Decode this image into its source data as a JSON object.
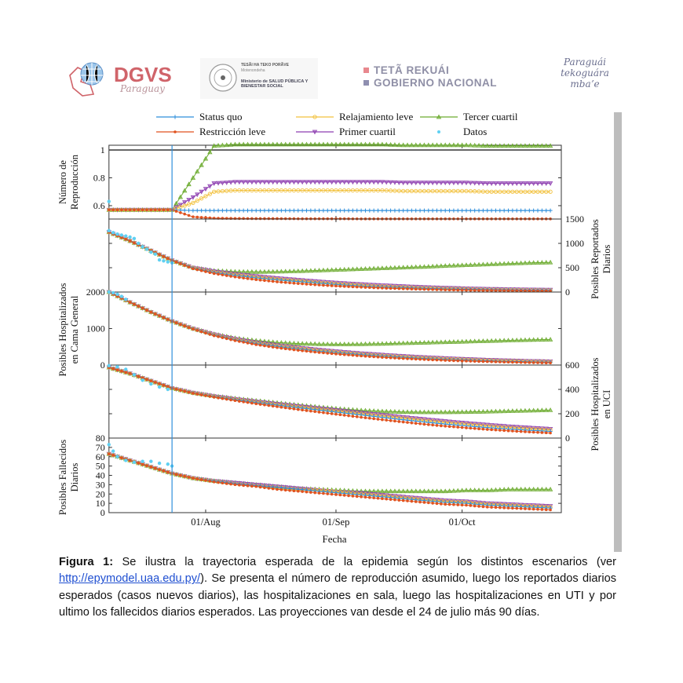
{
  "header": {
    "logos": {
      "dgvs": {
        "title": "DGVS",
        "subtitle": "Paraguay"
      },
      "ministry": {
        "line1": "TESÃI HA TEKO PORÃVE",
        "line2": "Motenondeha",
        "line3": "Ministerio de SALUD PÚBLICA Y BIENESTAR SOCIAL"
      },
      "government": {
        "line1": "TETÃ REKUÁI",
        "line2": "GOBIERNO NACIONAL"
      },
      "slogan": "Paraguái tekoguára mbaʼe"
    }
  },
  "caption": {
    "label": "Figura 1:",
    "text_before_link": " Se ilustra la trayectoria esperada de la epidemia según los distintos escenarios (ver ",
    "link": "http://epymodel.uaa.edu.py/",
    "text_after_link": "). Se presenta el número de reproducción asumido, luego los reportados diarios esperados (casos nuevos diarios), las hospitalizaciones en sala, luego las hospitalizaciones en UTI y por ultimo los fallecidos diarios esperados. Las proyecciones van desde el 24 de julio más 90 días."
  },
  "colors": {
    "status_quo": "#2f8fdc",
    "restriccion": "#e0521f",
    "relajamiento": "#f2c13d",
    "primer": "#8e3fb0",
    "tercer": "#6cab2f",
    "datos": "#5fd0f2",
    "threshold": "#444444",
    "marker_line": "#2f8fdc"
  },
  "chart_data": {
    "type": "line",
    "xlabel": "Fecha",
    "x_unit": "days since 09/Jul",
    "xlim": [
      0,
      107.6
    ],
    "x_ticks": [
      {
        "day": 23,
        "label": "01/Aug"
      },
      {
        "day": 54,
        "label": "01/Sep"
      },
      {
        "day": 84,
        "label": "01/Oct"
      }
    ],
    "projection_start_day": 15,
    "legend": {
      "placement": "top",
      "entries": [
        {
          "key": "status_quo",
          "label": "Status quo",
          "marker": "plus"
        },
        {
          "key": "relajamiento",
          "label": "Relajamiento leve",
          "marker": "circle"
        },
        {
          "key": "tercer",
          "label": "Tercer cuartil",
          "marker": "triangle-up"
        },
        {
          "key": "restriccion",
          "label": "Restricción leve",
          "marker": "dot"
        },
        {
          "key": "primer",
          "label": "Primer cuartil",
          "marker": "triangle-down"
        },
        {
          "key": "datos",
          "label": "Datos",
          "marker": "data-dot"
        }
      ]
    },
    "x": [
      0,
      5,
      10,
      15,
      20,
      25,
      30,
      35,
      40,
      45,
      50,
      55,
      60,
      65,
      70,
      75,
      80,
      85,
      90,
      95,
      100,
      105
    ],
    "panels": [
      {
        "id": "reproduccion",
        "ylabel": [
          "Número de",
          "Reproducción"
        ],
        "axis_side": "left",
        "ylim": [
          0.504,
          1.034
        ],
        "yticks": [
          0.6,
          0.8,
          1
        ],
        "ytick_labels": [
          "0.6",
          "0.8",
          "1"
        ],
        "threshold": 1,
        "series": {
          "status_quo": [
            0.57,
            0.57,
            0.57,
            0.57,
            0.565,
            0.565,
            0.565,
            0.565,
            0.565,
            0.565,
            0.565,
            0.565,
            0.565,
            0.565,
            0.565,
            0.565,
            0.565,
            0.565,
            0.565,
            0.565,
            0.565,
            0.565
          ],
          "restriccion": [
            0.57,
            0.57,
            0.57,
            0.57,
            0.52,
            0.51,
            0.508,
            0.507,
            0.507,
            0.506,
            0.506,
            0.506,
            0.505,
            0.505,
            0.505,
            0.505,
            0.505,
            0.505,
            0.505,
            0.505,
            0.505,
            0.505
          ],
          "relajamiento": [
            0.57,
            0.57,
            0.57,
            0.57,
            0.62,
            0.7,
            0.71,
            0.71,
            0.71,
            0.71,
            0.71,
            0.71,
            0.71,
            0.71,
            0.705,
            0.705,
            0.705,
            0.705,
            0.7,
            0.7,
            0.7,
            0.7
          ],
          "primer": [
            0.57,
            0.57,
            0.57,
            0.57,
            0.66,
            0.76,
            0.77,
            0.77,
            0.77,
            0.77,
            0.77,
            0.77,
            0.77,
            0.77,
            0.765,
            0.765,
            0.765,
            0.765,
            0.76,
            0.76,
            0.76,
            0.76
          ],
          "tercer": [
            0.57,
            0.57,
            0.57,
            0.57,
            0.8,
            1.03,
            1.04,
            1.04,
            1.04,
            1.04,
            1.04,
            1.04,
            1.04,
            1.04,
            1.035,
            1.035,
            1.035,
            1.035,
            1.03,
            1.03,
            1.03,
            1.03
          ]
        },
        "datos": {
          "x": [
            0
          ],
          "y": [
            0.63
          ]
        }
      },
      {
        "id": "reportados",
        "ylabel": [
          "Posibles Reportados",
          "Diarios"
        ],
        "axis_side": "right",
        "ylim": [
          0,
          1500
        ],
        "yticks": [
          0,
          500,
          1000,
          1500
        ],
        "ytick_labels": [
          "0",
          "500",
          "1000",
          "1500"
        ],
        "series": {
          "status_quo": [
            1230,
            1050,
            850,
            650,
            490,
            400,
            340,
            290,
            250,
            215,
            180,
            150,
            125,
            105,
            90,
            75,
            65,
            55,
            48,
            42,
            38,
            35
          ],
          "restriccion": [
            1230,
            1050,
            850,
            650,
            480,
            380,
            310,
            255,
            210,
            175,
            145,
            120,
            100,
            82,
            68,
            56,
            46,
            38,
            32,
            27,
            23,
            20
          ],
          "relajamiento": [
            1230,
            1050,
            850,
            650,
            495,
            410,
            355,
            305,
            265,
            230,
            195,
            165,
            140,
            118,
            100,
            85,
            72,
            62,
            53,
            46,
            41,
            37
          ],
          "primer": [
            1230,
            1050,
            850,
            650,
            500,
            425,
            370,
            325,
            285,
            250,
            215,
            185,
            160,
            137,
            118,
            100,
            86,
            74,
            64,
            56,
            50,
            45
          ],
          "tercer": [
            1230,
            1050,
            850,
            650,
            500,
            440,
            420,
            415,
            420,
            430,
            445,
            460,
            475,
            490,
            505,
            520,
            540,
            555,
            570,
            585,
            600,
            610
          ]
        },
        "datos": {
          "x": [
            0,
            1,
            2,
            3,
            4,
            5,
            6,
            7,
            8,
            9,
            10,
            11,
            12,
            13,
            14,
            15
          ],
          "y": [
            1260,
            1220,
            1190,
            1170,
            1150,
            1130,
            1100,
            1000,
            930,
            880,
            820,
            780,
            660,
            640,
            620,
            600
          ]
        }
      },
      {
        "id": "cama_general",
        "ylabel": [
          "Posibles Hospitalizados",
          "en Cama General"
        ],
        "axis_side": "left",
        "ylim": [
          0,
          2000
        ],
        "yticks": [
          0,
          1000,
          2000
        ],
        "ytick_labels": [
          "0",
          "1000",
          "2000"
        ],
        "series": {
          "status_quo": [
            2000,
            1720,
            1450,
            1200,
            990,
            820,
            690,
            590,
            510,
            440,
            380,
            330,
            285,
            245,
            210,
            180,
            155,
            135,
            115,
            100,
            88,
            78
          ],
          "restriccion": [
            2000,
            1720,
            1450,
            1200,
            985,
            805,
            670,
            560,
            475,
            405,
            345,
            295,
            250,
            212,
            180,
            152,
            130,
            110,
            94,
            80,
            68,
            58
          ],
          "relajamiento": [
            2000,
            1720,
            1450,
            1200,
            995,
            830,
            700,
            605,
            525,
            458,
            398,
            346,
            300,
            260,
            225,
            195,
            170,
            148,
            128,
            112,
            99,
            88
          ],
          "primer": [
            2000,
            1720,
            1450,
            1200,
            1000,
            840,
            715,
            620,
            545,
            478,
            418,
            366,
            320,
            280,
            245,
            213,
            186,
            163,
            142,
            125,
            110,
            98
          ],
          "tercer": [
            2000,
            1720,
            1450,
            1200,
            1000,
            850,
            740,
            670,
            620,
            590,
            575,
            570,
            575,
            585,
            600,
            615,
            630,
            645,
            660,
            675,
            690,
            700
          ]
        },
        "datos": {
          "x": [
            0,
            1,
            2,
            3,
            4
          ],
          "y": [
            2000,
            1980,
            1940,
            1880,
            1800
          ]
        }
      },
      {
        "id": "uci",
        "ylabel": [
          "Posibles Hospitalizados",
          "en UCI"
        ],
        "axis_side": "right",
        "ylim": [
          0,
          600
        ],
        "yticks": [
          0,
          200,
          400,
          600
        ],
        "ytick_labels": [
          "0",
          "200",
          "400",
          "600"
        ],
        "series": {
          "status_quo": [
            580,
            530,
            470,
            410,
            370,
            340,
            315,
            292,
            270,
            250,
            230,
            210,
            190,
            170,
            150,
            132,
            115,
            100,
            86,
            74,
            64,
            55
          ],
          "restriccion": [
            580,
            530,
            470,
            410,
            368,
            336,
            308,
            282,
            258,
            235,
            213,
            192,
            171,
            151,
            132,
            114,
            98,
            84,
            71,
            60,
            50,
            42
          ],
          "relajamiento": [
            580,
            530,
            470,
            410,
            371,
            342,
            318,
            296,
            275,
            256,
            237,
            218,
            199,
            180,
            162,
            144,
            127,
            112,
            98,
            86,
            75,
            66
          ],
          "primer": [
            580,
            530,
            470,
            410,
            372,
            344,
            321,
            300,
            280,
            262,
            244,
            226,
            208,
            190,
            172,
            155,
            138,
            123,
            109,
            96,
            85,
            75
          ],
          "tercer": [
            580,
            530,
            470,
            410,
            372,
            346,
            326,
            308,
            290,
            272,
            255,
            240,
            228,
            220,
            215,
            213,
            213,
            215,
            218,
            222,
            226,
            230
          ]
        },
        "datos": {
          "x": [
            0,
            2,
            4,
            6,
            8,
            10,
            12,
            14
          ],
          "y": [
            595,
            585,
            565,
            520,
            475,
            445,
            420,
            400
          ]
        }
      },
      {
        "id": "fallecidos",
        "ylabel": [
          "Posibles Fallecidos",
          "Diarios"
        ],
        "axis_side": "left",
        "ylim": [
          0,
          80
        ],
        "yticks": [
          0,
          10,
          20,
          30,
          40,
          50,
          60,
          70,
          80
        ],
        "ytick_labels": [
          "0",
          "10",
          "20",
          "30",
          "40",
          "50",
          "60",
          "70",
          "80"
        ],
        "series": {
          "status_quo": [
            63,
            56,
            49,
            42,
            37,
            34,
            31,
            29,
            27,
            25,
            23,
            21,
            19,
            17,
            15,
            13,
            11,
            10,
            8,
            7,
            6,
            5
          ],
          "restriccion": [
            63,
            56,
            49,
            42,
            37,
            33,
            30,
            28,
            25,
            23,
            21,
            19,
            17,
            15,
            13,
            11,
            9,
            8,
            6,
            5,
            4,
            3
          ],
          "relajamiento": [
            63,
            56,
            49,
            42,
            37,
            34,
            31,
            29,
            27,
            25,
            24,
            22,
            20,
            18,
            16,
            14,
            12,
            11,
            9,
            8,
            7,
            6
          ],
          "primer": [
            63,
            56,
            49,
            42,
            37,
            34,
            32,
            30,
            28,
            26,
            24,
            22,
            21,
            19,
            17,
            15,
            13,
            12,
            10,
            9,
            8,
            7
          ],
          "tercer": [
            63,
            56,
            49,
            42,
            37,
            34,
            32,
            30,
            28,
            26,
            25,
            24,
            23,
            23,
            23,
            23,
            23,
            24,
            24,
            25,
            25,
            25
          ]
        },
        "datos": {
          "x": [
            0,
            1,
            2,
            4,
            6,
            8,
            10,
            12,
            14,
            15
          ],
          "y": [
            73,
            66,
            60,
            56,
            54,
            55,
            55,
            53,
            52,
            50
          ]
        }
      }
    ]
  }
}
